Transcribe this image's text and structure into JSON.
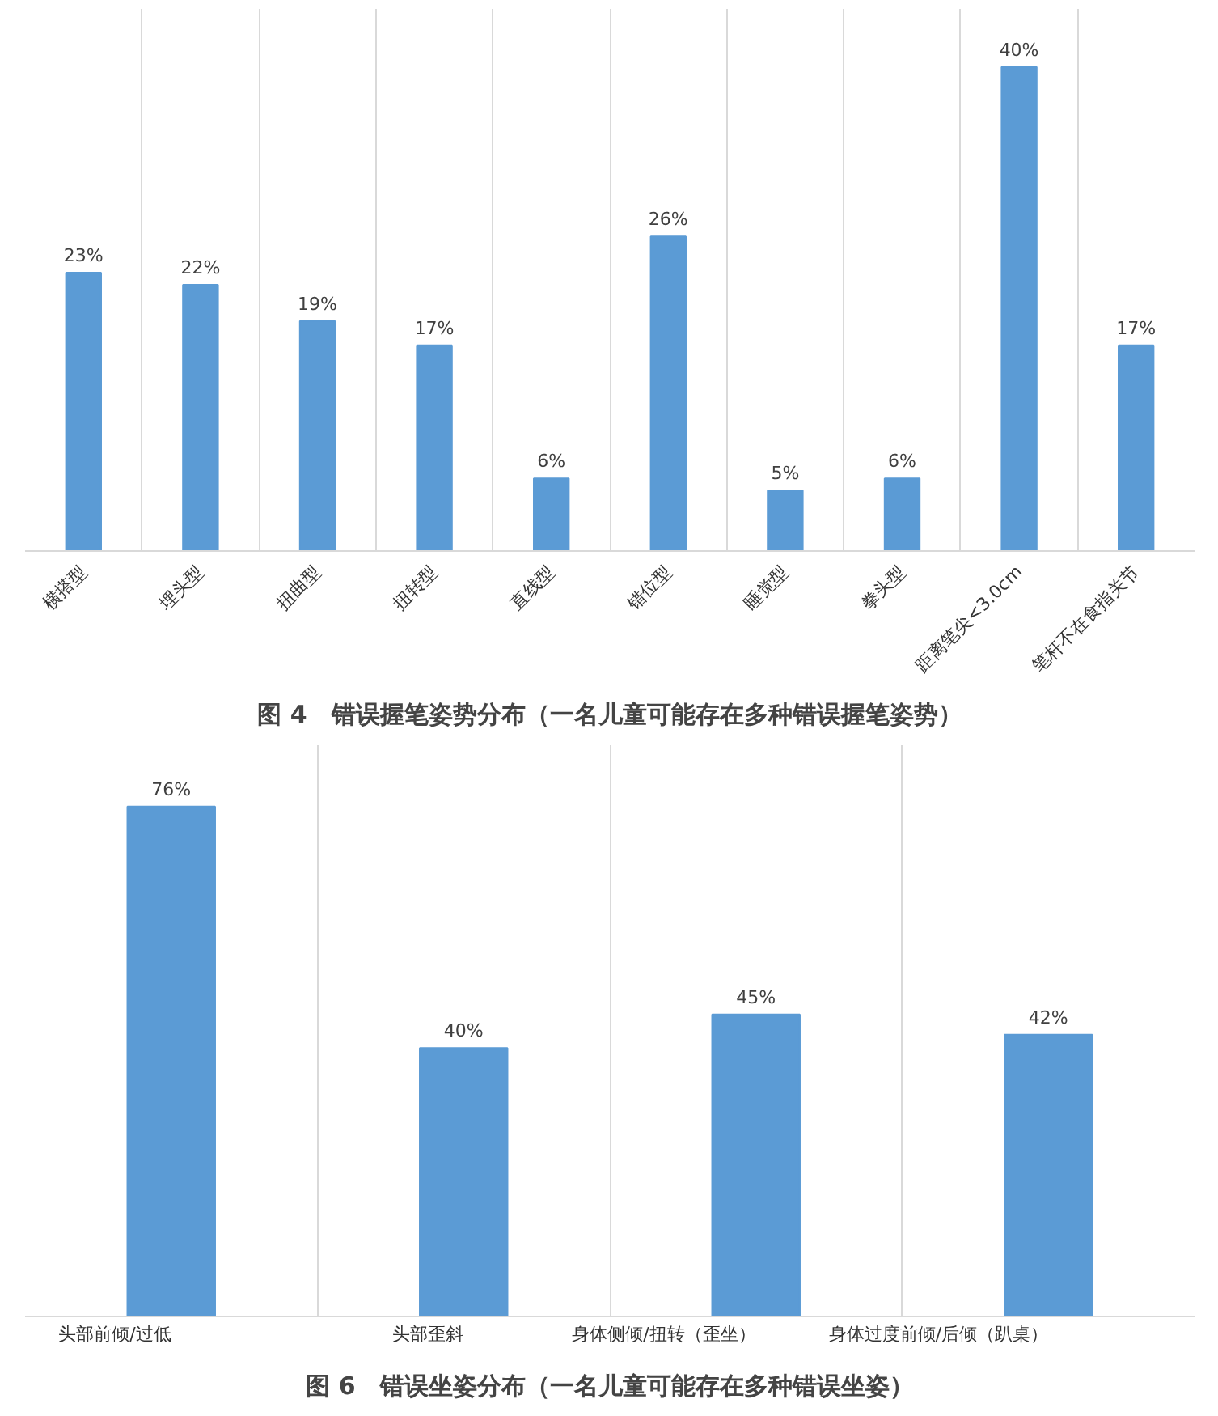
{
  "chart_data": [
    {
      "type": "bar",
      "title": "图 4　错误握笔姿势分布（一名儿童可能存在多种错误握笔姿势）",
      "categories": [
        "横搭型",
        "埋头型",
        "扭曲型",
        "扭转型",
        "直线型",
        "错位型",
        "睡觉型",
        "拳头型",
        "距离笔尖<3.0cm",
        "笔杆不在食指关节"
      ],
      "values": [
        23,
        22,
        19,
        17,
        6,
        26,
        5,
        6,
        40,
        17
      ],
      "value_labels": [
        "23%",
        "22%",
        "19%",
        "17%",
        "6%",
        "26%",
        "5%",
        "6%",
        "40%",
        "17%"
      ],
      "color": "#5b9bd5",
      "grid": "x"
    },
    {
      "type": "bar",
      "title": "图 6　错误坐姿分布（一名儿童可能存在多种错误坐姿）",
      "categories": [
        "头部前倾/过低",
        "头部歪斜",
        "身体侧倾/扭转（歪坐）",
        "身体过度前倾/后倾（趴桌）"
      ],
      "values": [
        76,
        40,
        45,
        42
      ],
      "value_labels": [
        "76%",
        "40%",
        "45%",
        "42%"
      ],
      "color": "#5b9bd5",
      "grid": "x"
    }
  ]
}
